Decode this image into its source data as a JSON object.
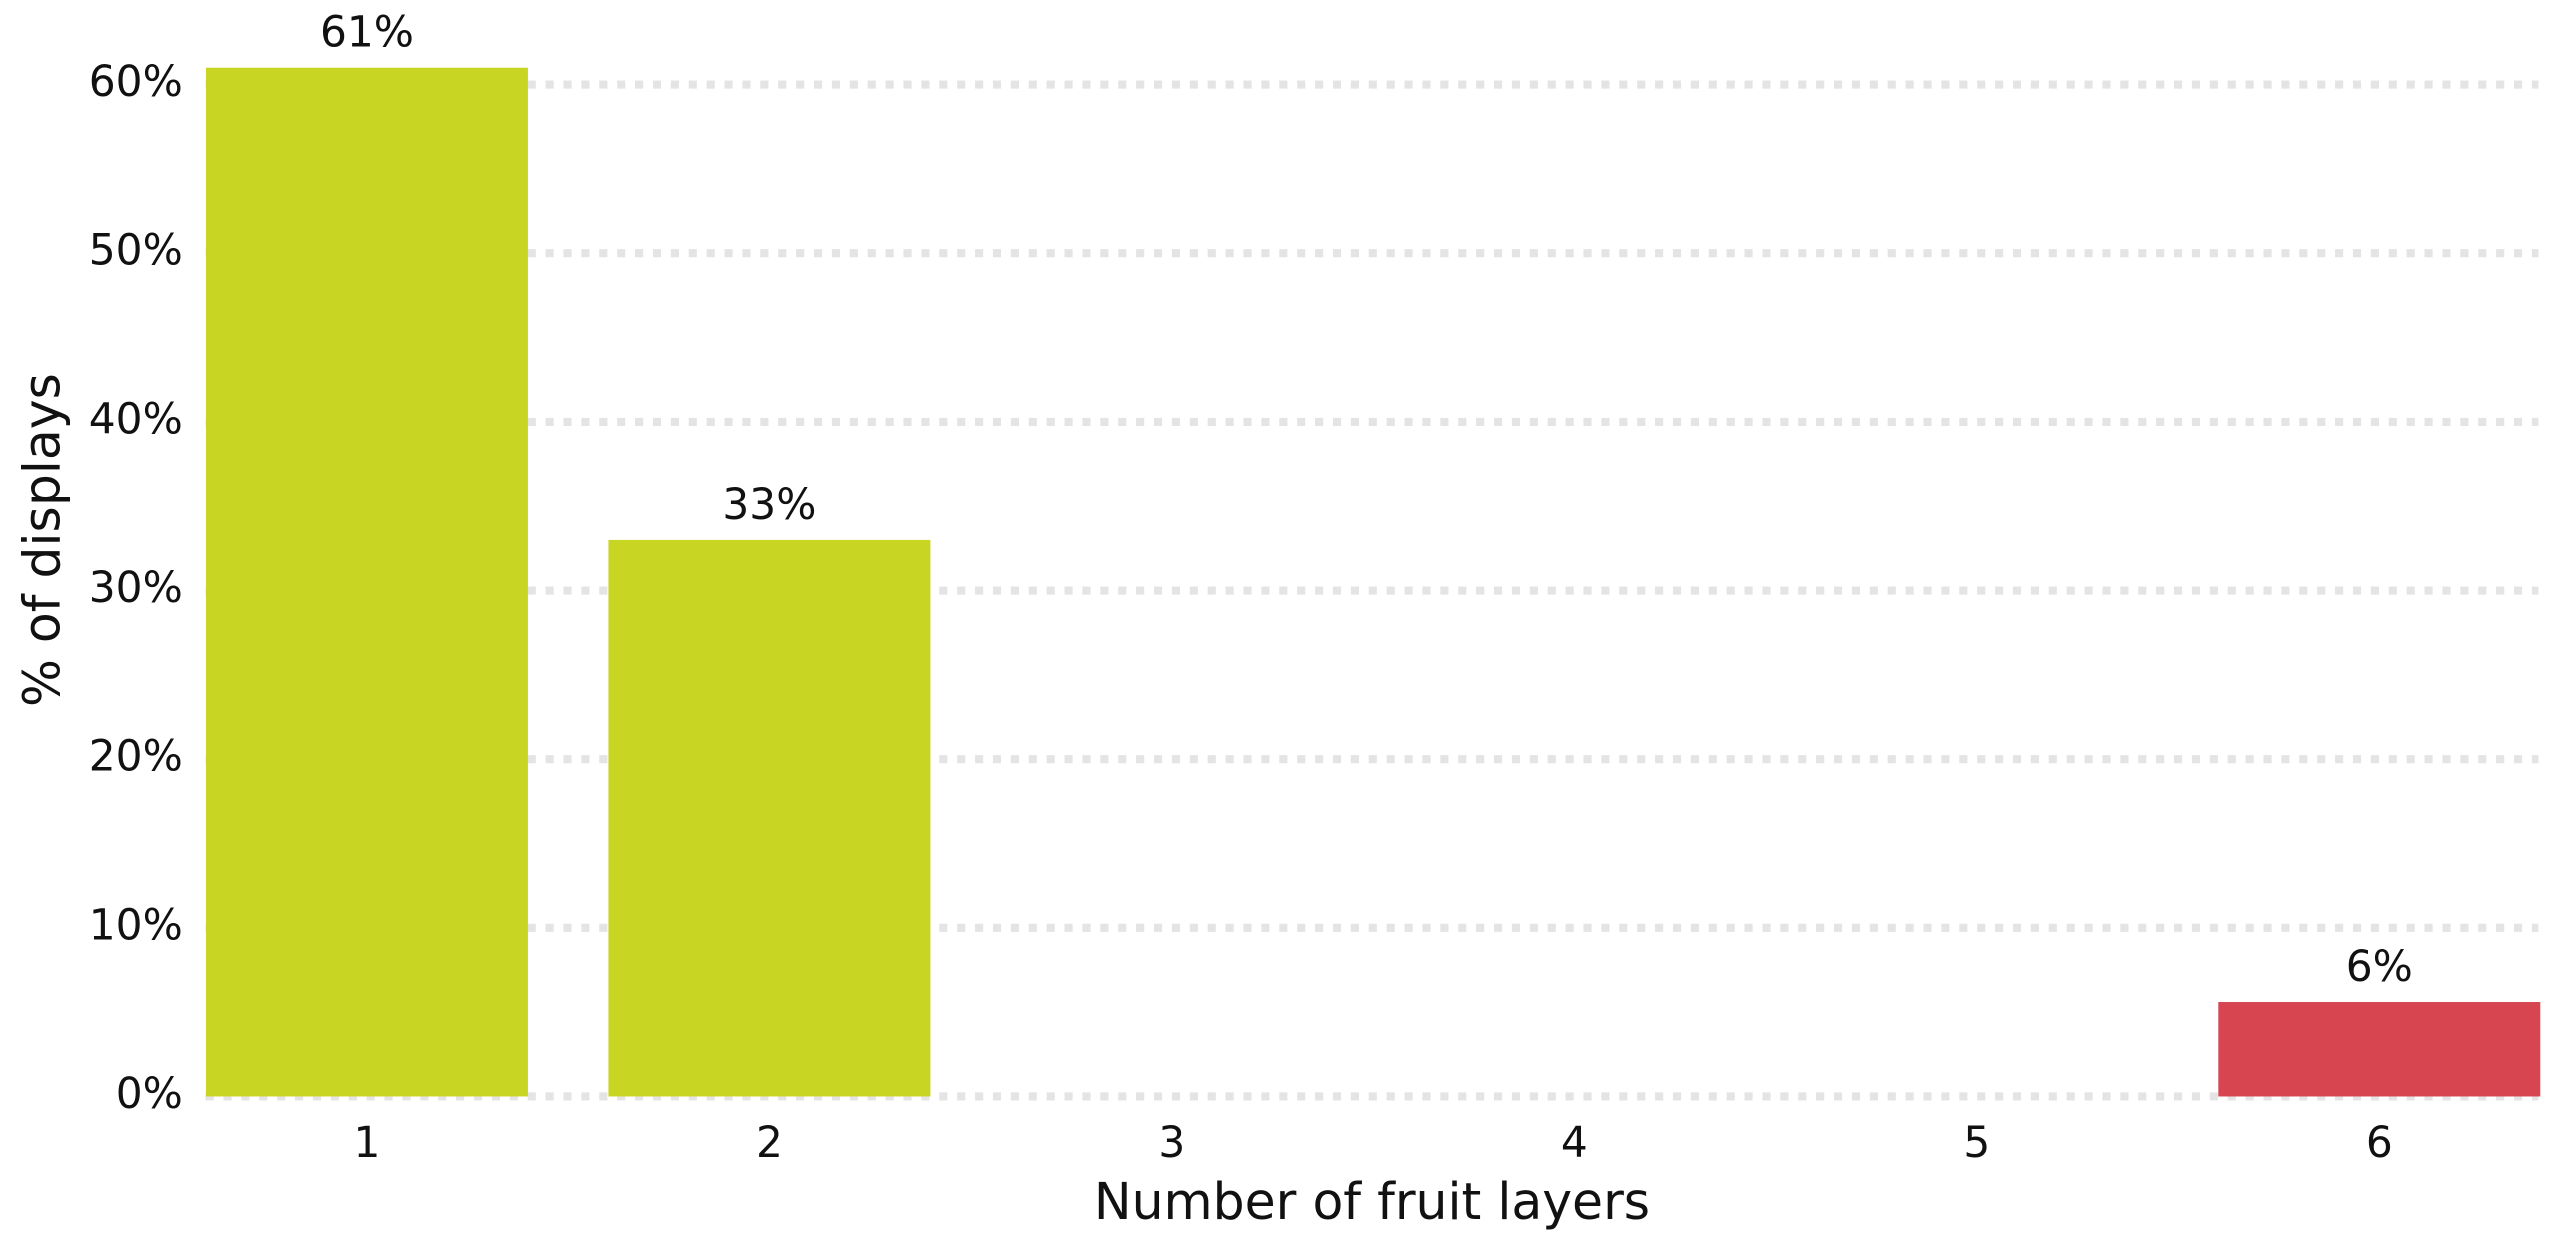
{
  "chart_data": {
    "type": "bar",
    "xlabel": "Number of fruit layers",
    "ylabel": "% of displays",
    "categories": [
      "1",
      "2",
      "3",
      "4",
      "5",
      "6"
    ],
    "values": [
      61,
      33,
      null,
      null,
      null,
      5.6
    ],
    "value_labels": [
      "61%",
      "33%",
      null,
      null,
      null,
      "6%"
    ],
    "colors": [
      "#c8d523",
      "#c8d523",
      null,
      null,
      null,
      "#d64550"
    ],
    "ylim": [
      0,
      60
    ],
    "yticks": [
      {
        "value": 0,
        "label": "0%"
      },
      {
        "value": 10,
        "label": "10%"
      },
      {
        "value": 20,
        "label": "20%"
      },
      {
        "value": 30,
        "label": "30%"
      },
      {
        "value": 40,
        "label": "40%"
      },
      {
        "value": 50,
        "label": "50%"
      },
      {
        "value": 60,
        "label": "60%"
      }
    ],
    "grid": true
  }
}
